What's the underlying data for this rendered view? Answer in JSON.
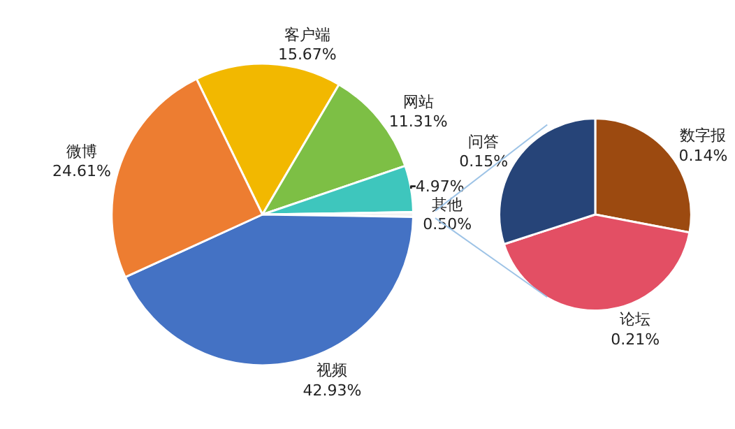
{
  "chart_data": [
    {
      "type": "pie",
      "categories": [
        "客户端",
        "网站",
        null,
        "其他",
        "视频",
        "微博"
      ],
      "values": [
        15.67,
        11.31,
        4.97,
        0.5,
        42.93,
        24.61
      ],
      "colors": [
        "#f2b800",
        "#7dbf45",
        "#3ec6bd",
        "#f2f2f2",
        "#4472c4",
        "#ed7d31"
      ],
      "value_labels": [
        "15.67%",
        "11.31%",
        "4.97%",
        "0.50%",
        "42.93%",
        "24.61%"
      ],
      "legend": false
    },
    {
      "type": "pie",
      "categories": [
        "数字报",
        "论坛",
        "问答"
      ],
      "values": [
        0.14,
        0.21,
        0.15
      ],
      "colors": [
        "#9c4a10",
        "#e34f64",
        "#264478"
      ],
      "value_labels": [
        "0.14%",
        "0.21%",
        "0.15%"
      ],
      "legend": false
    }
  ]
}
